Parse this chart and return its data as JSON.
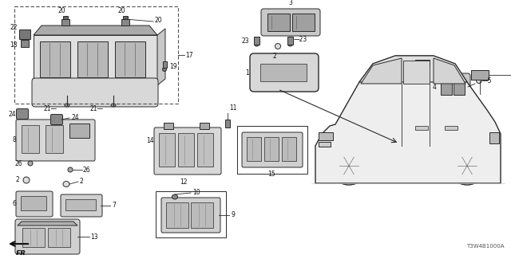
{
  "background_color": "#ffffff",
  "part_number": "T3W4B1000A",
  "fig_width": 6.4,
  "fig_height": 3.2,
  "dpi": 100,
  "lc": "#2a2a2a",
  "lc2": "#555555"
}
